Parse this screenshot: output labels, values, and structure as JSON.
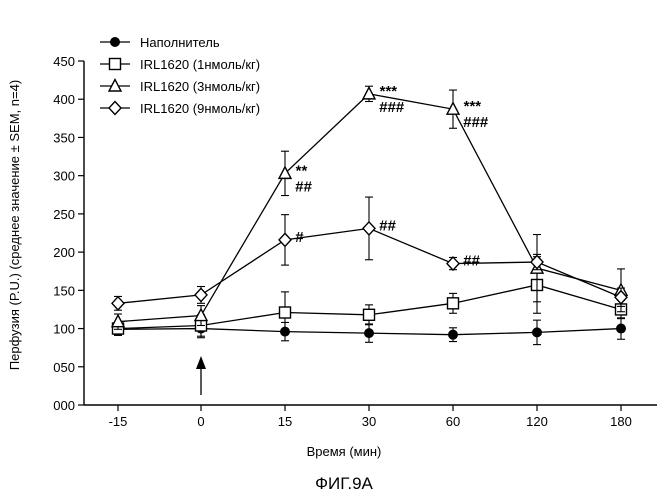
{
  "chart_data": {
    "type": "line",
    "categories": [
      "-15",
      "0",
      "15",
      "30",
      "60",
      "120",
      "180"
    ],
    "ylabel": "Перфузия (P.U.) (среднее значение ± SEM, n=4)",
    "xlabel": "Время (мин)",
    "ylim": [
      0,
      450
    ],
    "yticks": [
      "000",
      "050",
      "100",
      "150",
      "200",
      "250",
      "300",
      "350",
      "400",
      "450"
    ],
    "ytick_values": [
      0,
      50,
      100,
      150,
      200,
      250,
      300,
      350,
      400,
      450
    ],
    "legend_position": "top-left",
    "series": [
      {
        "name": "Наполнитель",
        "marker": "circle-filled",
        "values": [
          99,
          100,
          96,
          94,
          92,
          95,
          100
        ],
        "errors": [
          8,
          12,
          12,
          12,
          9,
          16,
          14
        ]
      },
      {
        "name": "IRL1620 (1нмоль/кг)",
        "marker": "square-open",
        "values": [
          100,
          104,
          121,
          118,
          133,
          157,
          125
        ],
        "errors": [
          8,
          14,
          27,
          13,
          13,
          37,
          12
        ]
      },
      {
        "name": "IRL1620 (3нмоль/кг)",
        "marker": "triangle-open",
        "values": [
          109,
          117,
          303,
          407,
          387,
          179,
          150
        ],
        "errors": [
          10,
          13,
          29,
          10,
          25,
          44,
          28
        ]
      },
      {
        "name": "IRL1620 (9нмоль/кг)",
        "marker": "diamond-open",
        "values": [
          133,
          144,
          216,
          231,
          185,
          187,
          141
        ],
        "errors": [
          9,
          11,
          33,
          41,
          8,
          10,
          12
        ]
      }
    ],
    "annotations": [
      {
        "category": "15",
        "value": 303,
        "lines": [
          "**",
          "##"
        ]
      },
      {
        "category": "15",
        "value": 216,
        "lines": [
          "#"
        ]
      },
      {
        "category": "30",
        "value": 407,
        "lines": [
          "***",
          "###"
        ]
      },
      {
        "category": "30",
        "value": 231,
        "lines": [
          "##"
        ]
      },
      {
        "category": "60",
        "value": 387,
        "lines": [
          "***",
          "###"
        ]
      },
      {
        "category": "60",
        "value": 185,
        "lines": [
          "##"
        ]
      }
    ],
    "arrow_category": "0"
  },
  "caption": "ФИГ.9А"
}
